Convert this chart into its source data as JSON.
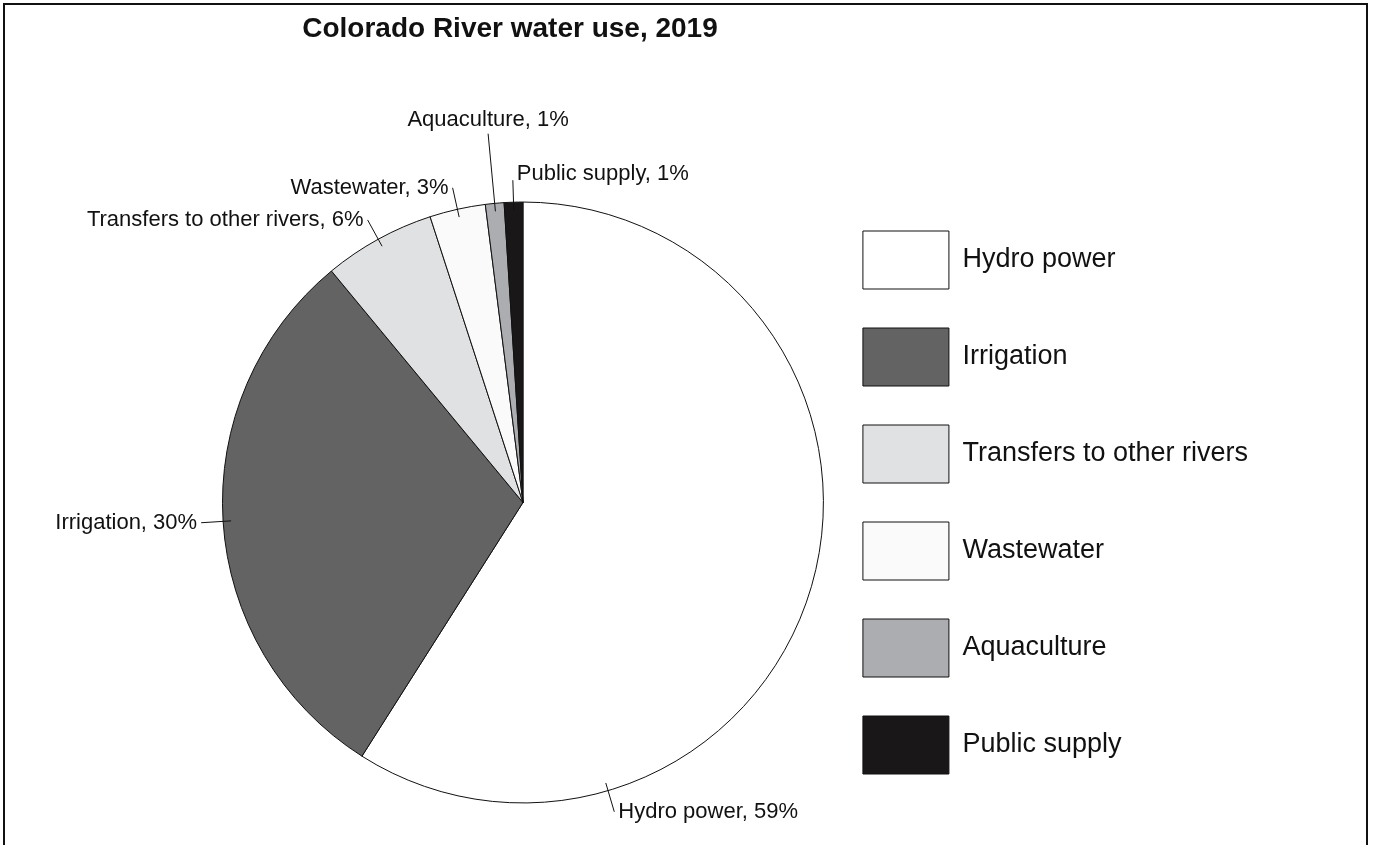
{
  "chart_data": {
    "type": "pie",
    "title": "Colorado River water use, 2019",
    "categories": [
      "Hydro power",
      "Irrigation",
      "Transfers to other rivers",
      "Wastewater",
      "Aquaculture",
      "Public supply"
    ],
    "values": [
      59,
      30,
      6,
      3,
      1,
      1
    ],
    "value_labels": [
      "Hydro power, 59%",
      "Irrigation, 30%",
      "Transfers to other rivers, 6%",
      "Wastewater, 3%",
      "Aquaculture, 1%",
      "Public supply, 1%"
    ],
    "colors": [
      "#ffffff",
      "#636363",
      "#e0e1e3",
      "#fafafa",
      "#acadb0",
      "#1a1718"
    ],
    "legend": "right"
  }
}
